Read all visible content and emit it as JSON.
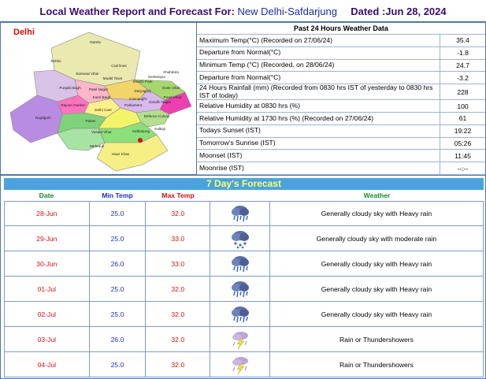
{
  "header": {
    "title": "Local Weather Report and Forecast For:",
    "station": "New Delhi-Safdarjung",
    "dated": "Dated :Jun 28, 2024"
  },
  "map": {
    "title": "Delhi",
    "labels": [
      "Narela",
      "Rohini",
      "Civil lines",
      "Model Town",
      "Seelampur",
      "Shahdara",
      "Sarswati Vihar",
      "Punjabi Bagh",
      "Patel Nagar",
      "Karol Bagh",
      "Daryaganj",
      "Preet Vihar",
      "Gandhi Nagar",
      "Rajouri Garden",
      "Delhi Cant",
      "Najafgarh",
      "Safdarjung",
      "Vasant Vihar",
      "Defence Colony",
      "Kalkaji",
      "Hauz Khas",
      "Mehrauli",
      "Palam",
      "Parliament",
      "Connaught",
      "Vivek Vihar",
      "Shastri Park"
    ]
  },
  "observations": {
    "title": "Past 24 Hours Weather Data",
    "rows": [
      {
        "label": "Maximum Temp(°C) (Recorded on 27/06/24)",
        "value": "35.4"
      },
      {
        "label": "Departure from Normal(°C)",
        "value": "-1.8"
      },
      {
        "label": "Minimum Temp (°C) (Recorded. on 28/06/24)",
        "value": "24.7"
      },
      {
        "label": "Departure from Normal(°C)",
        "value": "-3.2"
      },
      {
        "label": "24 Hours Rainfall (mm) (Recorded from 0830 hrs IST of yesterday to 0830 hrs IST of today)",
        "value": "228"
      },
      {
        "label": "Relative Humidity at 0830 hrs (%)",
        "value": "100"
      },
      {
        "label": "Relative Humidity at 1730 hrs (%) (Recorded on 27/06/24)",
        "value": "61"
      },
      {
        "label": "Todays Sunset (IST)",
        "value": "19:22"
      },
      {
        "label": "Tomorrow's Sunrise (IST)",
        "value": "05:26"
      },
      {
        "label": "Moonset (IST)",
        "value": "11:45"
      },
      {
        "label": "Moonrise (IST)",
        "value": "--:--"
      }
    ]
  },
  "forecast": {
    "title": "7 Day's Forecast",
    "headers": {
      "date": "Date",
      "min": "Min Temp",
      "max": "Max Temp",
      "weather": "Weather"
    },
    "rows": [
      {
        "date": "28-Jun",
        "min": "25.0",
        "max": "32.0",
        "icon": "heavy-rain-icon",
        "weather": "Generally cloudy sky with Heavy rain"
      },
      {
        "date": "29-Jun",
        "min": "25.0",
        "max": "33.0",
        "icon": "moderate-rain-icon",
        "weather": "Generally cloudy sky with moderate rain"
      },
      {
        "date": "30-Jun",
        "min": "26.0",
        "max": "33.0",
        "icon": "heavy-rain-icon",
        "weather": "Generally cloudy sky with Heavy rain"
      },
      {
        "date": "01-Jul",
        "min": "25.0",
        "max": "32.0",
        "icon": "heavy-rain-icon",
        "weather": "Generally cloudy sky with Heavy rain"
      },
      {
        "date": "02-Jul",
        "min": "25.0",
        "max": "32.0",
        "icon": "heavy-rain-icon",
        "weather": "Generally cloudy sky with Heavy rain"
      },
      {
        "date": "03-Jul",
        "min": "26.0",
        "max": "32.0",
        "icon": "thundershower-icon",
        "weather": "Rain or Thundershowers"
      },
      {
        "date": "04-Jul",
        "min": "25.0",
        "max": "32.0",
        "icon": "thundershower-icon",
        "weather": "Rain or Thundershowers"
      }
    ]
  }
}
